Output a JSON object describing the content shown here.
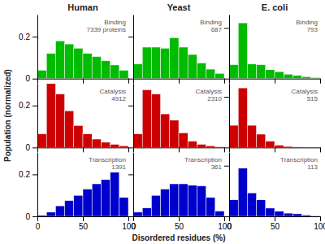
{
  "chart_data": [
    {
      "type": "histogram",
      "title": "Human",
      "annotations": [
        "Binding",
        "7339 proteins"
      ],
      "bins": [
        0,
        10,
        20,
        30,
        40,
        50,
        60,
        70,
        80,
        90,
        100
      ],
      "values": [
        0.04,
        0.12,
        0.18,
        0.165,
        0.145,
        0.12,
        0.105,
        0.085,
        0.065,
        0.04
      ],
      "color": "#00bb00",
      "xlim": [
        0,
        100
      ],
      "xticks": [
        0,
        50,
        100
      ],
      "ylim": [
        0,
        0.305
      ],
      "yticks": [
        0,
        0.2
      ],
      "tick_labels": "y"
    },
    {
      "type": "histogram",
      "title": "Yeast",
      "annotations": [
        "Binding",
        "687"
      ],
      "bins": [
        0,
        10,
        20,
        30,
        40,
        50,
        60,
        70,
        80,
        90,
        100
      ],
      "values": [
        0.07,
        0.15,
        0.15,
        0.145,
        0.195,
        0.15,
        0.115,
        0.075,
        0.045,
        0.025
      ],
      "color": "#00bb00",
      "xlim": [
        0,
        100
      ],
      "xticks": [
        0,
        50,
        100
      ],
      "ylim": [
        0,
        0.305
      ],
      "yticks": [
        0,
        0.2
      ],
      "tick_labels": false
    },
    {
      "type": "histogram",
      "title": "E. coli",
      "annotations": [
        "Binding",
        "793"
      ],
      "bins": [
        0,
        10,
        20,
        30,
        40,
        50,
        60,
        70,
        80,
        90,
        100
      ],
      "values": [
        0.11,
        0.44,
        0.115,
        0.11,
        0.07,
        0.055,
        0.035,
        0.025,
        0.015,
        0.008
      ],
      "color": "#00bb00",
      "xlim": [
        0,
        100
      ],
      "xticks": [
        0,
        50,
        100
      ],
      "ylim": [
        0,
        0.505
      ],
      "yticks": [
        0,
        0.4
      ],
      "tick_labels": false
    },
    {
      "type": "histogram",
      "ylabel": "Population (normalized)",
      "annotations": [
        "Catalysis",
        "4912"
      ],
      "bins": [
        0,
        10,
        20,
        30,
        40,
        50,
        60,
        70,
        80,
        90,
        100
      ],
      "values": [
        0.065,
        0.305,
        0.255,
        0.175,
        0.105,
        0.065,
        0.04,
        0.025,
        0.015,
        0.008
      ],
      "color": "#cc0000",
      "xlim": [
        0,
        100
      ],
      "xticks": [
        0,
        50,
        100
      ],
      "ylim": [
        0,
        0.305
      ],
      "yticks": [
        0,
        0.2
      ],
      "tick_labels": "y"
    },
    {
      "type": "histogram",
      "annotations": [
        "Catalysis",
        "2310"
      ],
      "bins": [
        0,
        10,
        20,
        30,
        40,
        50,
        60,
        70,
        80,
        90,
        100
      ],
      "values": [
        0.065,
        0.275,
        0.255,
        0.16,
        0.13,
        0.07,
        0.03,
        0.015,
        0.008,
        0.003
      ],
      "color": "#cc0000",
      "xlim": [
        0,
        100
      ],
      "xticks": [
        0,
        50,
        100
      ],
      "ylim": [
        0,
        0.305
      ],
      "yticks": [
        0,
        0.2
      ],
      "tick_labels": false
    },
    {
      "type": "histogram",
      "annotations": [
        "Catalysis",
        "515"
      ],
      "bins": [
        0,
        10,
        20,
        30,
        40,
        50,
        60,
        70,
        80,
        90,
        100
      ],
      "values": [
        0.175,
        0.47,
        0.175,
        0.105,
        0.05,
        0.018,
        0.008,
        0.004,
        0.002,
        0.001
      ],
      "color": "#cc0000",
      "xlim": [
        0,
        100
      ],
      "xticks": [
        0,
        50,
        100
      ],
      "ylim": [
        0,
        0.505
      ],
      "yticks": [
        0,
        0.4
      ],
      "tick_labels": false
    },
    {
      "type": "histogram",
      "annotations": [
        "Transcription",
        "1391"
      ],
      "bins": [
        0,
        10,
        20,
        30,
        40,
        50,
        60,
        70,
        80,
        90,
        100
      ],
      "values": [
        0.005,
        0.02,
        0.05,
        0.075,
        0.1,
        0.13,
        0.155,
        0.175,
        0.21,
        0.09
      ],
      "color": "#0000cc",
      "xlim": [
        0,
        100
      ],
      "xticks": [
        0,
        50,
        100
      ],
      "ylim": [
        0,
        0.305
      ],
      "yticks": [
        0,
        0.2
      ]
    },
    {
      "type": "histogram",
      "xlabel": "Disordered residues (%)",
      "annotations": [
        "Transcription",
        "361"
      ],
      "bins": [
        0,
        10,
        20,
        30,
        40,
        50,
        60,
        70,
        80,
        90,
        100
      ],
      "values": [
        0.02,
        0.04,
        0.1,
        0.13,
        0.155,
        0.155,
        0.148,
        0.145,
        0.09,
        0.025
      ],
      "color": "#0000cc",
      "xlim": [
        0,
        100
      ],
      "xticks": [
        0,
        50,
        100
      ],
      "ylim": [
        0,
        0.305
      ],
      "yticks": [
        0,
        0.2
      ],
      "tick_labels": "x"
    },
    {
      "type": "histogram",
      "annotations": [
        "Transcription",
        "113"
      ],
      "bins": [
        0,
        10,
        20,
        30,
        40,
        50,
        60,
        70,
        80,
        90,
        100
      ],
      "values": [
        0.13,
        0.38,
        0.185,
        0.13,
        0.065,
        0.04,
        0.025,
        0.02,
        0.01,
        0.005
      ],
      "color": "#0000cc",
      "xlim": [
        0,
        100
      ],
      "xticks": [
        0,
        50,
        100
      ],
      "ylim": [
        0,
        0.505
      ],
      "yticks": [
        0,
        0.4
      ],
      "tick_labels": "x"
    }
  ]
}
